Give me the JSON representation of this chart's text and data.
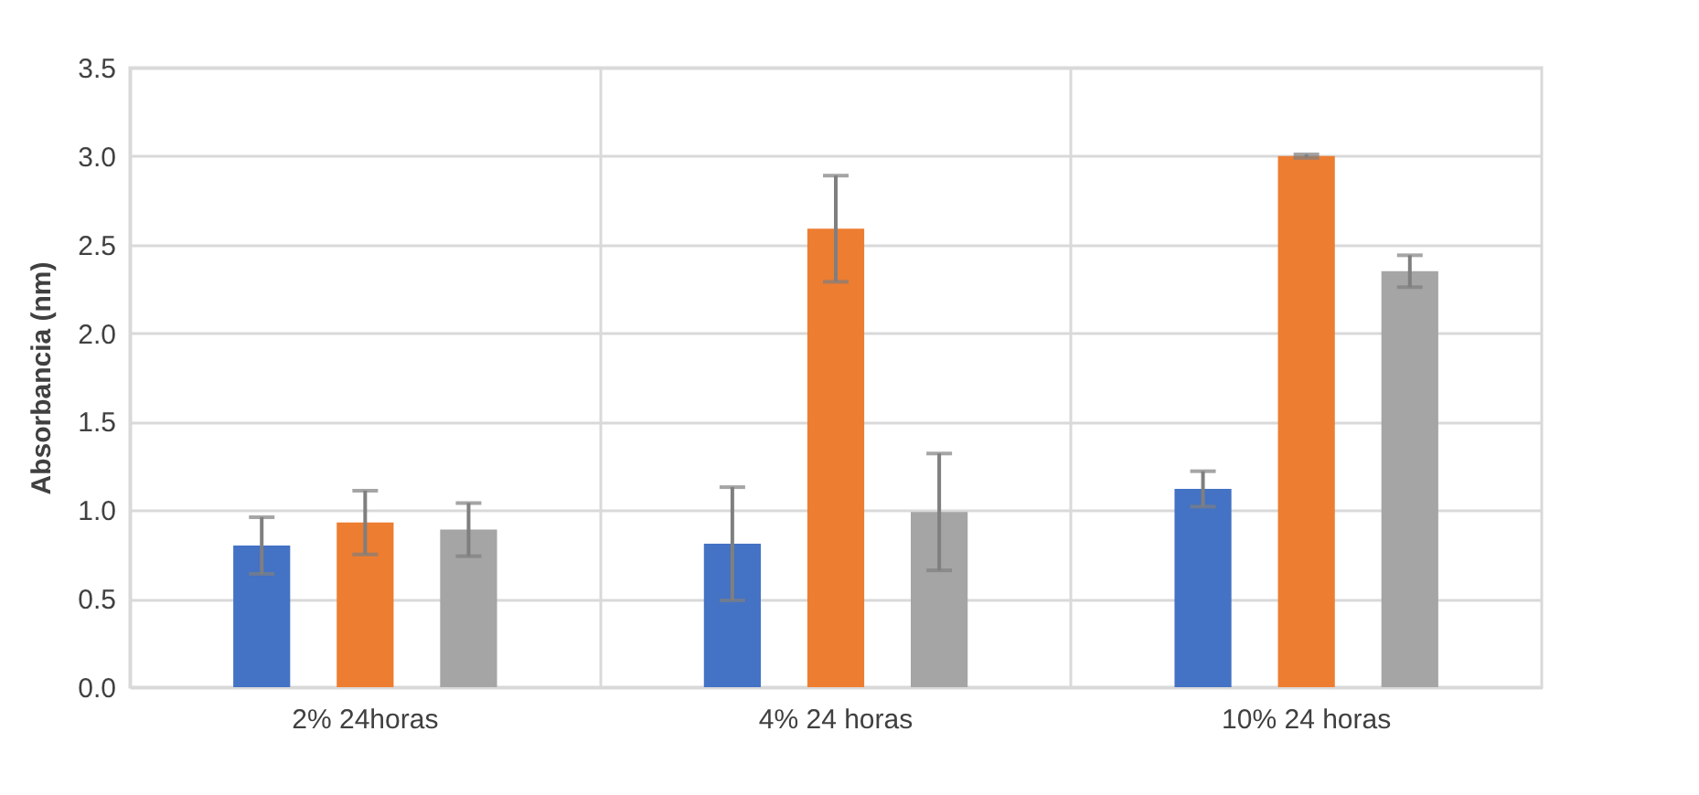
{
  "chart_data": {
    "type": "bar",
    "ylabel": "Absorbancia (nm)",
    "categories": [
      "2% 24horas",
      "4% 24 horas",
      "10% 24 horas"
    ],
    "series": [
      {
        "color": "#4472c4",
        "values": [
          0.8,
          0.81,
          1.12
        ],
        "errors": [
          0.16,
          0.32,
          0.1
        ]
      },
      {
        "color": "#ed7d31",
        "values": [
          0.93,
          2.59,
          3.0
        ],
        "errors": [
          0.18,
          0.3,
          0.01
        ]
      },
      {
        "color": "#a5a5a5",
        "values": [
          0.89,
          0.99,
          2.35
        ],
        "errors": [
          0.15,
          0.33,
          0.09
        ]
      }
    ],
    "ylim": [
      0,
      3.5
    ],
    "yticks": [
      {
        "value": 0,
        "label": "0.0"
      },
      {
        "value": 0.5,
        "label": "0.5"
      },
      {
        "value": 1,
        "label": "1.0"
      },
      {
        "value": 1.5,
        "label": "1.5"
      },
      {
        "value": 2,
        "label": "2.0"
      },
      {
        "value": 2.5,
        "label": "2.5"
      },
      {
        "value": 3,
        "label": "3.0"
      },
      {
        "value": 3.5,
        "label": "3.5"
      }
    ],
    "grid": true,
    "legend": false
  }
}
